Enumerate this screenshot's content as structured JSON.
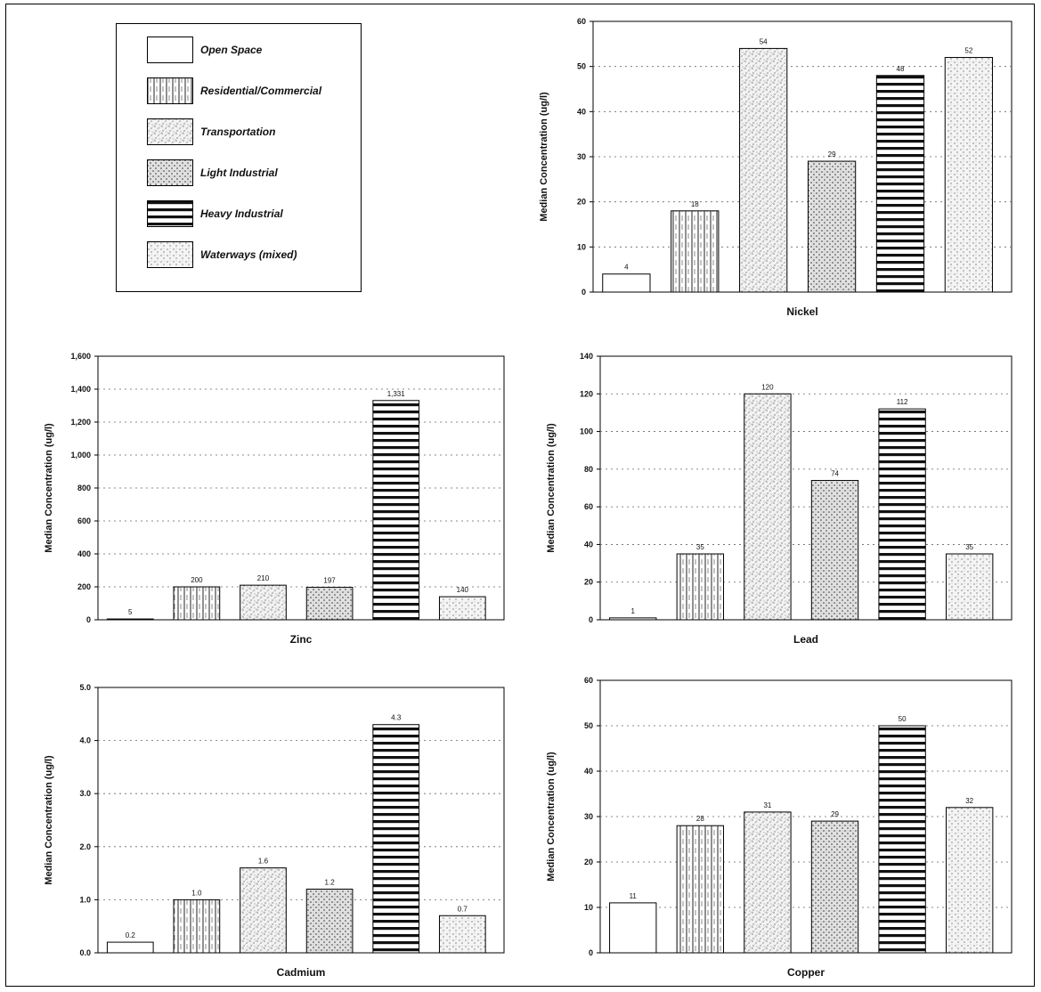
{
  "legend": {
    "items": [
      {
        "label": "Open Space",
        "pattern": "open"
      },
      {
        "label": "Residential/Commercial",
        "pattern": "vert"
      },
      {
        "label": "Transportation",
        "pattern": "stipple"
      },
      {
        "label": "Light Industrial",
        "pattern": "cross"
      },
      {
        "label": "Heavy Industrial",
        "pattern": "horiz"
      },
      {
        "label": "Waterways (mixed)",
        "pattern": "dots"
      }
    ]
  },
  "chart_data": [
    {
      "type": "bar",
      "title": "Nickel",
      "xlabel": "Nickel",
      "ylabel": "Median Concentration (ug/l)",
      "categories": [
        "Open Space",
        "Residential/Commercial",
        "Transportation",
        "Light Industrial",
        "Heavy Industrial",
        "Waterways (mixed)"
      ],
      "values": [
        4,
        18,
        54,
        29,
        48,
        52
      ],
      "value_labels": [
        "4",
        "18",
        "54",
        "29",
        "48",
        "52"
      ],
      "ylim": [
        0,
        60
      ],
      "yticks": [
        0,
        10,
        20,
        30,
        40,
        50,
        60
      ],
      "ytick_labels": [
        "0",
        "10",
        "20",
        "30",
        "40",
        "50",
        "60"
      ]
    },
    {
      "type": "bar",
      "title": "Zinc",
      "xlabel": "Zinc",
      "ylabel": "Median Concentration (ug/l)",
      "categories": [
        "Open Space",
        "Residential/Commercial",
        "Transportation",
        "Light Industrial",
        "Heavy Industrial",
        "Waterways (mixed)"
      ],
      "values": [
        5,
        200,
        210,
        197,
        1331,
        140
      ],
      "value_labels": [
        "5",
        "200",
        "210",
        "197",
        "1,331",
        "140"
      ],
      "ylim": [
        0,
        1600
      ],
      "yticks": [
        0,
        200,
        400,
        600,
        800,
        1000,
        1200,
        1400,
        1600
      ],
      "ytick_labels": [
        "0",
        "200",
        "400",
        "600",
        "800",
        "1,000",
        "1,200",
        "1,400",
        "1,600"
      ]
    },
    {
      "type": "bar",
      "title": "Lead",
      "xlabel": "Lead",
      "ylabel": "Median Concentration (ug/l)",
      "categories": [
        "Open Space",
        "Residential/Commercial",
        "Transportation",
        "Light Industrial",
        "Heavy Industrial",
        "Waterways (mixed)"
      ],
      "values": [
        1,
        35,
        120,
        74,
        112,
        35
      ],
      "value_labels": [
        "1",
        "35",
        "120",
        "74",
        "112",
        "35"
      ],
      "ylim": [
        0,
        140
      ],
      "yticks": [
        0,
        20,
        40,
        60,
        80,
        100,
        120,
        140
      ],
      "ytick_labels": [
        "0",
        "20",
        "40",
        "60",
        "80",
        "100",
        "120",
        "140"
      ]
    },
    {
      "type": "bar",
      "title": "Cadmium",
      "xlabel": "Cadmium",
      "ylabel": "Median Concentration (ug/l)",
      "categories": [
        "Open Space",
        "Residential/Commercial",
        "Transportation",
        "Light Industrial",
        "Heavy Industrial",
        "Waterways (mixed)"
      ],
      "values": [
        0.2,
        1.0,
        1.6,
        1.2,
        4.3,
        0.7
      ],
      "value_labels": [
        "0.2",
        "1.0",
        "1.6",
        "1.2",
        "4.3",
        "0.7"
      ],
      "ylim": [
        0,
        5
      ],
      "yticks": [
        0,
        1,
        2,
        3,
        4,
        5
      ],
      "ytick_labels": [
        "0.0",
        "1.0",
        "2.0",
        "3.0",
        "4.0",
        "5.0"
      ]
    },
    {
      "type": "bar",
      "title": "Copper",
      "xlabel": "Copper",
      "ylabel": "Median Concentration (ug/l)",
      "categories": [
        "Open Space",
        "Residential/Commercial",
        "Transportation",
        "Light Industrial",
        "Heavy Industrial",
        "Waterways (mixed)"
      ],
      "values": [
        11,
        28,
        31,
        29,
        50,
        32
      ],
      "value_labels": [
        "11",
        "28",
        "31",
        "29",
        "50",
        "32"
      ],
      "ylim": [
        0,
        60
      ],
      "yticks": [
        0,
        10,
        20,
        30,
        40,
        50,
        60
      ],
      "ytick_labels": [
        "0",
        "10",
        "20",
        "30",
        "40",
        "50",
        "60"
      ]
    }
  ]
}
